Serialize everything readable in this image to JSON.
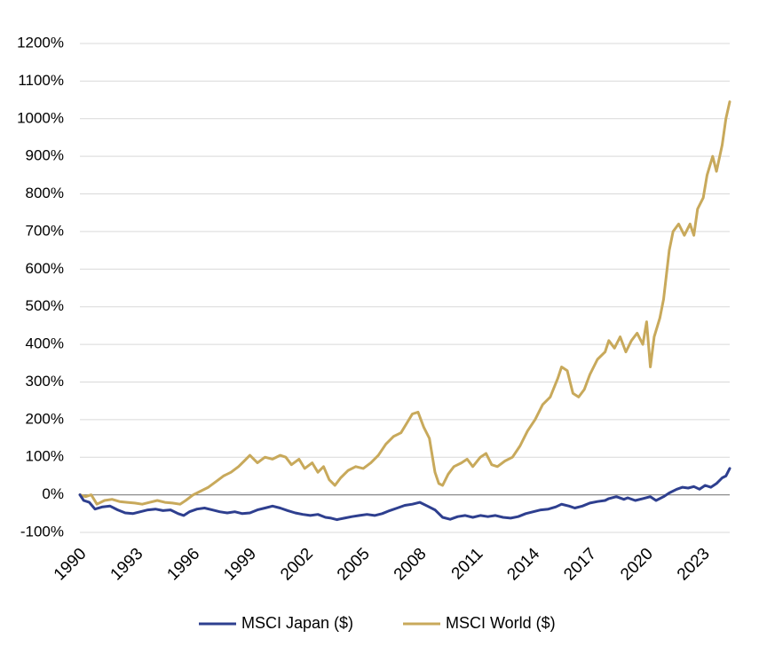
{
  "chart_data": {
    "type": "line",
    "title": "",
    "xlabel": "",
    "ylabel": "",
    "xlim": [
      1990,
      2024.4
    ],
    "ylim": [
      -100,
      1200
    ],
    "y_ticks": [
      "1200%",
      "1100%",
      "1000%",
      "900%",
      "800%",
      "700%",
      "600%",
      "500%",
      "400%",
      "300%",
      "200%",
      "100%",
      "0%",
      "-100%"
    ],
    "y_tick_values": [
      1200,
      1100,
      1000,
      900,
      800,
      700,
      600,
      500,
      400,
      300,
      200,
      100,
      0,
      -100
    ],
    "x_ticks": [
      "1990",
      "1993",
      "1996",
      "1999",
      "2002",
      "2005",
      "2008",
      "2011",
      "2014",
      "2017",
      "2020",
      "2023"
    ],
    "x_tick_values": [
      1990,
      1993,
      1996,
      1999,
      2002,
      2005,
      2008,
      2011,
      2014,
      2017,
      2020,
      2023
    ],
    "grid": "horizontal",
    "legend_position": "bottom",
    "series": [
      {
        "name": "MSCI Japan ($)",
        "color": "#2e3f8f",
        "x": [
          1990.0,
          1990.2,
          1990.5,
          1990.8,
          1991.2,
          1991.6,
          1992.0,
          1992.4,
          1992.8,
          1993.2,
          1993.6,
          1994.0,
          1994.4,
          1994.8,
          1995.2,
          1995.5,
          1995.8,
          1996.2,
          1996.6,
          1997.0,
          1997.4,
          1997.8,
          1998.2,
          1998.6,
          1999.0,
          1999.4,
          1999.8,
          2000.2,
          2000.6,
          2001.0,
          2001.4,
          2001.8,
          2002.2,
          2002.6,
          2003.0,
          2003.3,
          2003.6,
          2004.0,
          2004.4,
          2004.8,
          2005.2,
          2005.6,
          2006.0,
          2006.4,
          2006.8,
          2007.2,
          2007.6,
          2008.0,
          2008.4,
          2008.8,
          2009.2,
          2009.6,
          2010.0,
          2010.4,
          2010.8,
          2011.2,
          2011.6,
          2012.0,
          2012.4,
          2012.8,
          2013.2,
          2013.6,
          2014.0,
          2014.4,
          2014.8,
          2015.2,
          2015.5,
          2015.9,
          2016.2,
          2016.6,
          2017.0,
          2017.4,
          2017.8,
          2018.0,
          2018.4,
          2018.8,
          2019.0,
          2019.4,
          2019.8,
          2020.2,
          2020.5,
          2020.9,
          2021.2,
          2021.6,
          2021.9,
          2022.2,
          2022.5,
          2022.8,
          2023.1,
          2023.4,
          2023.7,
          2024.0,
          2024.2,
          2024.4
        ],
        "values": [
          0,
          -15,
          -20,
          -38,
          -32,
          -30,
          -40,
          -48,
          -50,
          -45,
          -40,
          -38,
          -42,
          -40,
          -50,
          -55,
          -45,
          -38,
          -35,
          -40,
          -45,
          -48,
          -45,
          -50,
          -48,
          -40,
          -35,
          -30,
          -35,
          -42,
          -48,
          -52,
          -55,
          -52,
          -60,
          -62,
          -66,
          -62,
          -58,
          -55,
          -52,
          -55,
          -50,
          -42,
          -35,
          -28,
          -25,
          -20,
          -30,
          -40,
          -60,
          -65,
          -58,
          -55,
          -60,
          -55,
          -58,
          -55,
          -60,
          -62,
          -58,
          -50,
          -45,
          -40,
          -38,
          -32,
          -25,
          -30,
          -35,
          -30,
          -22,
          -18,
          -15,
          -10,
          -5,
          -12,
          -8,
          -15,
          -10,
          -5,
          -15,
          -5,
          5,
          15,
          20,
          18,
          22,
          15,
          25,
          20,
          30,
          45,
          50,
          70
        ]
      },
      {
        "name": "MSCI World ($)",
        "color": "#c8a95b",
        "x": [
          1990.0,
          1990.3,
          1990.6,
          1990.9,
          1991.3,
          1991.7,
          1992.1,
          1992.5,
          1992.9,
          1993.3,
          1993.7,
          1994.1,
          1994.5,
          1994.9,
          1995.3,
          1995.6,
          1996.0,
          1996.4,
          1996.8,
          1997.2,
          1997.6,
          1998.0,
          1998.4,
          1998.7,
          1999.0,
          1999.4,
          1999.8,
          2000.2,
          2000.6,
          2000.9,
          2001.2,
          2001.6,
          2001.9,
          2002.3,
          2002.6,
          2002.9,
          2003.2,
          2003.5,
          2003.8,
          2004.2,
          2004.6,
          2005.0,
          2005.4,
          2005.8,
          2006.2,
          2006.6,
          2007.0,
          2007.3,
          2007.6,
          2007.9,
          2008.2,
          2008.5,
          2008.8,
          2009.0,
          2009.2,
          2009.5,
          2009.8,
          2010.2,
          2010.5,
          2010.8,
          2011.2,
          2011.5,
          2011.8,
          2012.1,
          2012.5,
          2012.9,
          2013.3,
          2013.7,
          2014.1,
          2014.5,
          2014.9,
          2015.3,
          2015.5,
          2015.8,
          2016.1,
          2016.4,
          2016.7,
          2017.0,
          2017.4,
          2017.8,
          2018.0,
          2018.3,
          2018.6,
          2018.9,
          2019.2,
          2019.5,
          2019.8,
          2020.0,
          2020.2,
          2020.4,
          2020.7,
          2020.9,
          2021.2,
          2021.4,
          2021.7,
          2022.0,
          2022.3,
          2022.5,
          2022.7,
          2023.0,
          2023.2,
          2023.5,
          2023.7,
          2024.0,
          2024.2,
          2024.4
        ],
        "values": [
          0,
          -5,
          0,
          -25,
          -15,
          -12,
          -18,
          -20,
          -22,
          -25,
          -20,
          -15,
          -20,
          -22,
          -25,
          -15,
          0,
          10,
          20,
          35,
          50,
          60,
          75,
          90,
          105,
          85,
          100,
          95,
          105,
          100,
          80,
          95,
          70,
          85,
          60,
          75,
          40,
          25,
          45,
          65,
          75,
          70,
          85,
          105,
          135,
          155,
          165,
          190,
          215,
          220,
          180,
          150,
          60,
          30,
          25,
          55,
          75,
          85,
          95,
          75,
          100,
          110,
          80,
          75,
          90,
          100,
          130,
          170,
          200,
          240,
          260,
          310,
          340,
          330,
          270,
          260,
          280,
          320,
          360,
          380,
          410,
          390,
          420,
          380,
          410,
          430,
          400,
          460,
          340,
          420,
          470,
          520,
          650,
          700,
          720,
          690,
          720,
          690,
          760,
          790,
          850,
          900,
          860,
          930,
          1000,
          1045
        ]
      }
    ]
  }
}
